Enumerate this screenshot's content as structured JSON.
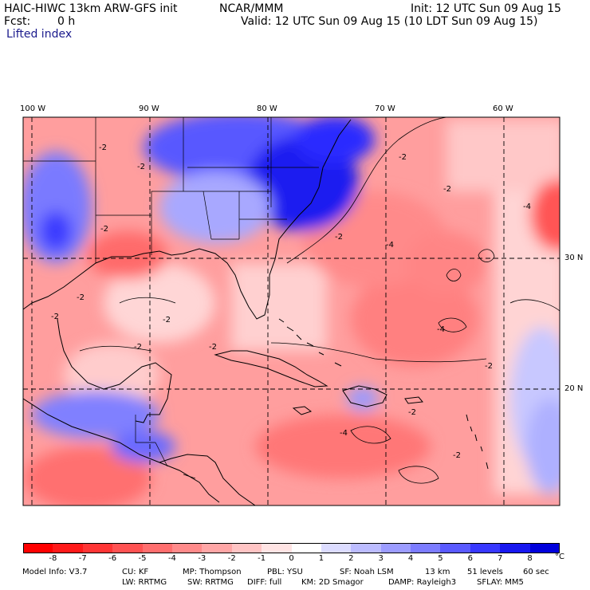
{
  "header": {
    "model": "HAIC-HIWC 13km ARW-GFS init",
    "org": "NCAR/MMM",
    "init": "Init: 12 UTC Sun 09 Aug 15",
    "fcst_label": "Fcst:",
    "fcst_value": "0 h",
    "valid": "Valid: 12 UTC Sun 09 Aug 15 (10 LDT Sun 09 Aug 15)",
    "field": "Lifted index"
  },
  "map": {
    "lon_labels": [
      "100 W",
      "90 W",
      "80 W",
      "70 W",
      "60 W"
    ],
    "lat_labels": [
      "30 N",
      "20 N"
    ],
    "contour_label": "-2",
    "contour_label_b": "-4",
    "field_colors": {
      "unstable": "#ff2020",
      "neutral": "#ffffff",
      "stable": "#0010e0"
    }
  },
  "colorbar": {
    "unit": "°C",
    "ticks": [
      "-8",
      "-7",
      "-6",
      "-5",
      "-4",
      "-3",
      "-2",
      "-1",
      "0",
      "1",
      "2",
      "3",
      "4",
      "5",
      "6",
      "7",
      "8"
    ],
    "colors": [
      "#ff0000",
      "#ff1a1a",
      "#ff3535",
      "#ff5252",
      "#ff6e6e",
      "#ff8a8a",
      "#ffa6a6",
      "#ffc4c4",
      "#ffe4e4",
      "#ffffff",
      "#dcdcff",
      "#bcbcff",
      "#9c9cff",
      "#7c7cff",
      "#5a5aff",
      "#3838ff",
      "#1818f0",
      "#0000dc"
    ]
  },
  "model_info": {
    "line1": [
      "Model Info: V3.7",
      "CU: KF",
      "MP: Thompson",
      "PBL: YSU",
      "SF: Noah LSM",
      "13 km",
      "51 levels",
      "60 sec"
    ],
    "line2": [
      "LW: RRTMG",
      "SW: RRTMG",
      "DIFF: full",
      "KM: 2D Smagor",
      "DAMP: Rayleigh3",
      "SFLAY: MM5"
    ]
  }
}
